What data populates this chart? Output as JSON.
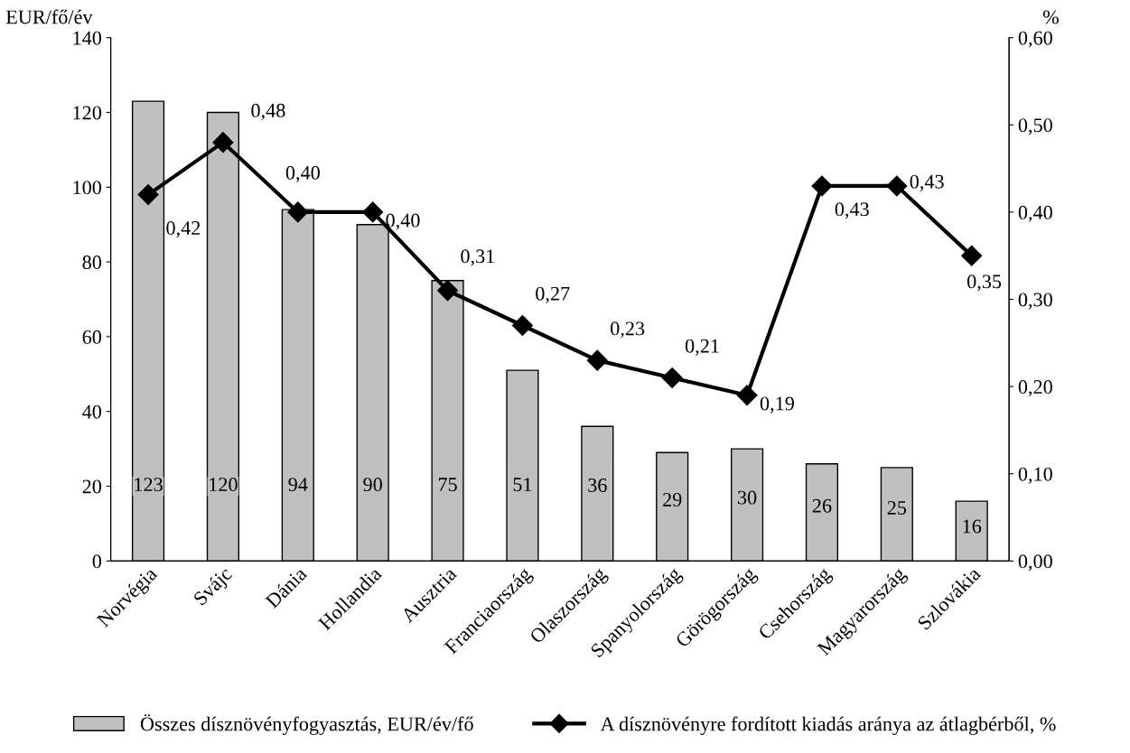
{
  "chart_data": {
    "type": "bar",
    "ylabel": "EUR/fő/év",
    "y2label": "%",
    "categories": [
      "Norvégia",
      "Svájc",
      "Dánia",
      "Hollandia",
      "Ausztria",
      "Franciaország",
      "Olaszország",
      "Spanyolország",
      "Görögország",
      "Csehország",
      "Magyarország",
      "Szlovákia"
    ],
    "series": [
      {
        "name": "Összes dísznövényfogyasztás, EUR/év/fő",
        "color": "#c0c0c0",
        "values": [
          123,
          120,
          94,
          90,
          75,
          51,
          36,
          29,
          30,
          26,
          25,
          16
        ],
        "value_labels": [
          "123",
          "120",
          "94",
          "90",
          "75",
          "51",
          "36",
          "29",
          "30",
          "26",
          "25",
          "16"
        ]
      },
      {
        "name": "A dísznövényre fordított kiadás aránya az átlagbérből, %",
        "type": "line",
        "axis": "y2",
        "color": "#000000",
        "marker": "diamond",
        "values": [
          0.42,
          0.48,
          0.4,
          0.4,
          0.31,
          0.27,
          0.23,
          0.21,
          0.19,
          0.43,
          0.43,
          0.35
        ],
        "value_labels": [
          "0,42",
          "0,48",
          "0,40",
          "0,40",
          "0,31",
          "0,27",
          "0,23",
          "0,21",
          "0,19",
          "0,43",
          "0,43",
          "0,35"
        ]
      }
    ],
    "ylim": [
      0,
      140
    ],
    "yticks": [
      0,
      20,
      40,
      60,
      80,
      100,
      120,
      140
    ],
    "y2lim": [
      0,
      0.6
    ],
    "y2ticks": [
      {
        "value": 0,
        "label": "0,00"
      },
      {
        "value": 0.1,
        "label": "0,10"
      },
      {
        "value": 0.2,
        "label": "0,20"
      },
      {
        "value": 0.3,
        "label": "0,30"
      },
      {
        "value": 0.4,
        "label": "0,40"
      },
      {
        "value": 0.5,
        "label": "0,50"
      },
      {
        "value": 0.6,
        "label": "0,60"
      }
    ],
    "grid": false,
    "legend": "bottom"
  }
}
